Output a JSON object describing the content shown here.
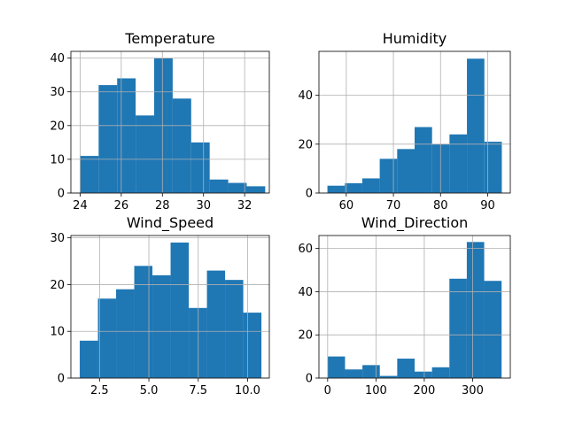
{
  "chart_data": [
    {
      "type": "bar",
      "title": "Temperature",
      "xlim": [
        23.55,
        33.2
      ],
      "ylim": [
        0,
        42
      ],
      "xticks": [
        24,
        26,
        28,
        30,
        32
      ],
      "yticks": [
        0,
        10,
        20,
        30,
        40
      ],
      "bin_edges": [
        24.0,
        24.9,
        25.8,
        26.7,
        27.6,
        28.5,
        29.4,
        30.3,
        31.2,
        32.1,
        33.0
      ],
      "values": [
        11,
        32,
        34,
        23,
        40,
        28,
        15,
        4,
        3,
        2
      ],
      "grid": true,
      "color": "#1f77b4"
    },
    {
      "type": "bar",
      "title": "Humidity",
      "xlim": [
        54.2,
        94.8
      ],
      "ylim": [
        0,
        58
      ],
      "xticks": [
        60,
        70,
        80,
        90
      ],
      "yticks": [
        0,
        20,
        40
      ],
      "bin_edges": [
        56.0,
        59.7,
        63.4,
        67.1,
        70.8,
        74.5,
        78.2,
        81.9,
        85.6,
        89.3,
        93.0
      ],
      "values": [
        3,
        4,
        6,
        14,
        18,
        27,
        20,
        24,
        55,
        21
      ],
      "grid": true,
      "color": "#1f77b4"
    },
    {
      "type": "bar",
      "title": "Wind_Speed",
      "xlim": [
        1.05,
        11.1
      ],
      "ylim": [
        0,
        30.5
      ],
      "xticks": [
        2.5,
        5.0,
        7.5,
        10.0
      ],
      "xtick_labels": [
        "2.5",
        "5.0",
        "7.5",
        "10.0"
      ],
      "yticks": [
        0,
        10,
        20,
        30
      ],
      "bin_edges": [
        1.5,
        2.42,
        3.34,
        4.26,
        5.18,
        6.1,
        7.02,
        7.94,
        8.86,
        9.78,
        10.7
      ],
      "values": [
        8,
        17,
        19,
        24,
        22,
        29,
        15,
        23,
        21,
        14
      ],
      "grid": true,
      "color": "#1f77b4"
    },
    {
      "type": "bar",
      "title": "Wind_Direction",
      "xlim": [
        -18,
        378
      ],
      "ylim": [
        0,
        66
      ],
      "xticks": [
        0,
        100,
        200,
        300
      ],
      "yticks": [
        0,
        20,
        40,
        60
      ],
      "bin_edges": [
        0,
        36,
        72,
        108,
        144,
        180,
        216,
        252,
        288,
        324,
        360
      ],
      "values": [
        10,
        4,
        6,
        1,
        9,
        3,
        5,
        46,
        63,
        45
      ],
      "grid": true,
      "color": "#1f77b4"
    }
  ]
}
